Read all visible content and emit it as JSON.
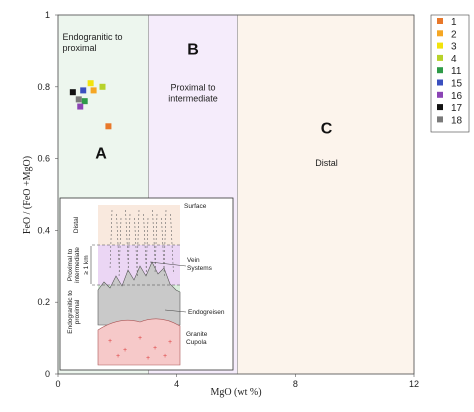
{
  "chart_data": {
    "type": "scatter",
    "xlabel": "MgO (wt %)",
    "ylabel": "FeO / (FeO +MgO)",
    "xlim": [
      0,
      12
    ],
    "ylim": [
      0,
      1
    ],
    "x_ticks": [
      "0",
      "4",
      "8",
      "12"
    ],
    "y_ticks": [
      "0",
      "0.2",
      "0.4",
      "0.6",
      "0.8",
      "1"
    ],
    "grid": false,
    "legend_position": "top-right",
    "zones": [
      {
        "id": "A",
        "letter": "A",
        "label": "Endogranitic to proximal",
        "x_range": [
          0,
          3.05
        ],
        "color": "#edf6ee"
      },
      {
        "id": "B",
        "letter": "B",
        "label": "Proximal to intermediate",
        "x_range": [
          3.05,
          6.05
        ],
        "color": "#f5ecfb"
      },
      {
        "id": "C",
        "letter": "C",
        "label": "Distal",
        "x_range": [
          6.05,
          12
        ],
        "color": "#fcf4ec"
      }
    ],
    "series": [
      {
        "name": "1",
        "color": "#e8782a",
        "points": [
          [
            1.7,
            0.69
          ]
        ]
      },
      {
        "name": "2",
        "color": "#f5a623",
        "points": [
          [
            1.2,
            0.79
          ]
        ]
      },
      {
        "name": "3",
        "color": "#f2e30b",
        "points": [
          [
            1.1,
            0.81
          ]
        ]
      },
      {
        "name": "4",
        "color": "#b7d22a",
        "points": [
          [
            1.5,
            0.8
          ]
        ]
      },
      {
        "name": "11",
        "color": "#2e9a48",
        "points": [
          [
            0.9,
            0.76
          ]
        ]
      },
      {
        "name": "15",
        "color": "#3a4fbf",
        "points": [
          [
            0.85,
            0.79
          ]
        ]
      },
      {
        "name": "16",
        "color": "#8b44b5",
        "points": [
          [
            0.75,
            0.745
          ]
        ]
      },
      {
        "name": "17",
        "color": "#111111",
        "points": [
          [
            0.5,
            0.785
          ]
        ]
      },
      {
        "name": "18",
        "color": "#7a7a7a",
        "points": [
          [
            0.7,
            0.765
          ]
        ]
      }
    ]
  },
  "inset": {
    "labels": {
      "surface": "Surface",
      "vein_systems": "Vein Systems",
      "endogreisen": "Endogreisen",
      "granite_cupola": "Granite Cupola",
      "distal": "Distal",
      "proximal_to_intermediate": "Proximal to intermediate",
      "endogranitic_to_proximal": "Endogranitic to proximal",
      "scale": "≥ 1 km"
    }
  }
}
